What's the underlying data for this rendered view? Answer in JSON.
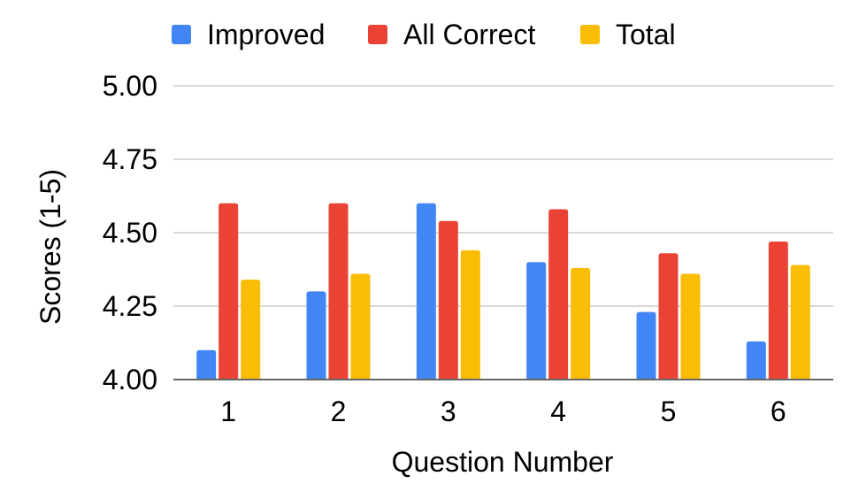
{
  "chart_data": {
    "type": "bar",
    "title": "",
    "xlabel": "Question Number",
    "ylabel": "Scores (1-5)",
    "categories": [
      "1",
      "2",
      "3",
      "4",
      "5",
      "6"
    ],
    "series": [
      {
        "name": "Improved",
        "color": "#4285f4",
        "values": [
          4.1,
          4.3,
          4.6,
          4.4,
          4.23,
          4.13
        ]
      },
      {
        "name": "All Correct",
        "color": "#ea4335",
        "values": [
          4.6,
          4.6,
          4.54,
          4.58,
          4.43,
          4.47
        ]
      },
      {
        "name": "Total",
        "color": "#fbbc04",
        "values": [
          4.34,
          4.36,
          4.44,
          4.38,
          4.36,
          4.39
        ]
      }
    ],
    "ylim": [
      4.0,
      5.0
    ],
    "yticks": [
      "4.00",
      "4.25",
      "4.50",
      "4.75",
      "5.00"
    ],
    "ytick_values": [
      4.0,
      4.25,
      4.5,
      4.75,
      5.0
    ],
    "grid": true,
    "legend_position": "top"
  }
}
